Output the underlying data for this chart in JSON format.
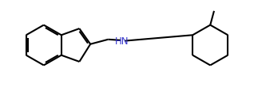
{
  "background_color": "#ffffff",
  "bond_color": "#000000",
  "lw": 1.5,
  "font_size_atom": 8.5,
  "figsize": [
    3.18,
    1.16
  ],
  "dpi": 100
}
